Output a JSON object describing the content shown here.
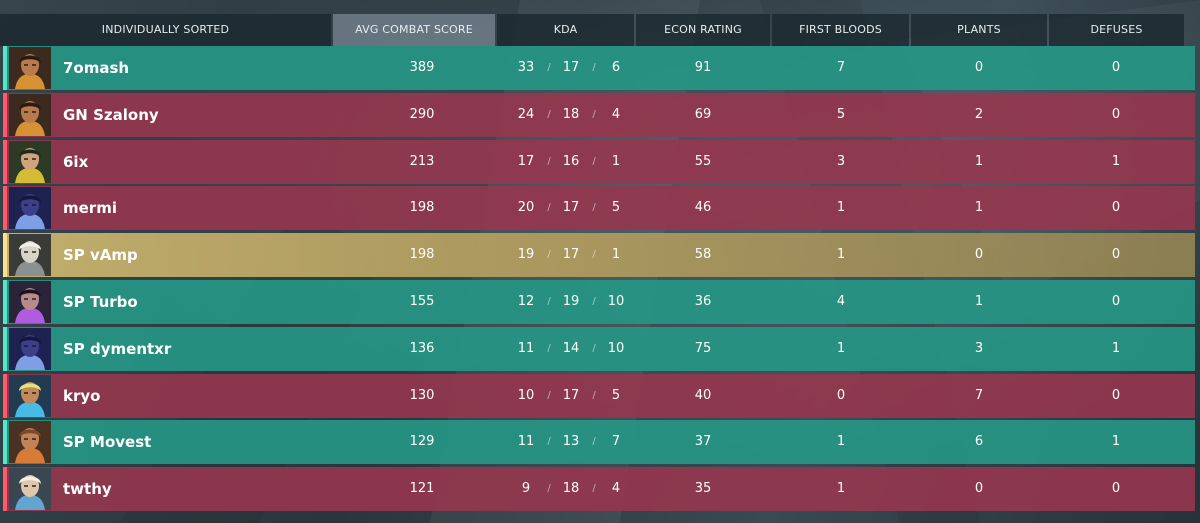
{
  "header": {
    "sort_label": "INDIVIDUALLY SORTED",
    "columns": [
      "AVG COMBAT SCORE",
      "KDA",
      "ECON RATING",
      "FIRST BLOODS",
      "PLANTS",
      "DEFUSES"
    ],
    "active_column": "AVG COMBAT SCORE"
  },
  "colors": {
    "team_a": "#26967f",
    "team_b": "#96364e",
    "self": "#c8b46e",
    "team_a_stripe": "#57e6c7",
    "team_b_stripe": "#ff5a6c"
  },
  "players": [
    {
      "name": "7omash",
      "team": "team-a",
      "agent": "raze-icon",
      "acs": "389",
      "k": "33",
      "d": "17",
      "a": "6",
      "econ": "91",
      "fb": "7",
      "plants": "0",
      "defuses": "0"
    },
    {
      "name": "GN Szalony",
      "team": "team-b",
      "agent": "raze-icon",
      "acs": "290",
      "k": "24",
      "d": "18",
      "a": "4",
      "econ": "69",
      "fb": "5",
      "plants": "2",
      "defuses": "0"
    },
    {
      "name": "6ix",
      "team": "team-b",
      "agent": "killjoy-icon",
      "acs": "213",
      "k": "17",
      "d": "16",
      "a": "1",
      "econ": "55",
      "fb": "3",
      "plants": "1",
      "defuses": "1"
    },
    {
      "name": "mermi",
      "team": "team-b",
      "agent": "omen-icon",
      "acs": "198",
      "k": "20",
      "d": "17",
      "a": "5",
      "econ": "46",
      "fb": "1",
      "plants": "1",
      "defuses": "0"
    },
    {
      "name": "SP vAmp",
      "team": "self",
      "agent": "cypher-icon",
      "acs": "198",
      "k": "19",
      "d": "17",
      "a": "1",
      "econ": "58",
      "fb": "1",
      "plants": "0",
      "defuses": "0"
    },
    {
      "name": "SP Turbo",
      "team": "team-a",
      "agent": "reyna-icon",
      "acs": "155",
      "k": "12",
      "d": "19",
      "a": "10",
      "econ": "36",
      "fb": "4",
      "plants": "1",
      "defuses": "0"
    },
    {
      "name": "SP dymentxr",
      "team": "team-a",
      "agent": "omen-icon",
      "acs": "136",
      "k": "11",
      "d": "14",
      "a": "10",
      "econ": "75",
      "fb": "1",
      "plants": "3",
      "defuses": "1"
    },
    {
      "name": "kryo",
      "team": "team-b",
      "agent": "neon-icon",
      "acs": "130",
      "k": "10",
      "d": "17",
      "a": "5",
      "econ": "40",
      "fb": "0",
      "plants": "7",
      "defuses": "0"
    },
    {
      "name": "SP Movest",
      "team": "team-a",
      "agent": "breach-icon",
      "acs": "129",
      "k": "11",
      "d": "13",
      "a": "7",
      "econ": "37",
      "fb": "1",
      "plants": "6",
      "defuses": "1"
    },
    {
      "name": "twthy",
      "team": "team-b",
      "agent": "sova-icon",
      "acs": "121",
      "k": "9",
      "d": "18",
      "a": "4",
      "econ": "35",
      "fb": "1",
      "plants": "0",
      "defuses": "0"
    }
  ]
}
